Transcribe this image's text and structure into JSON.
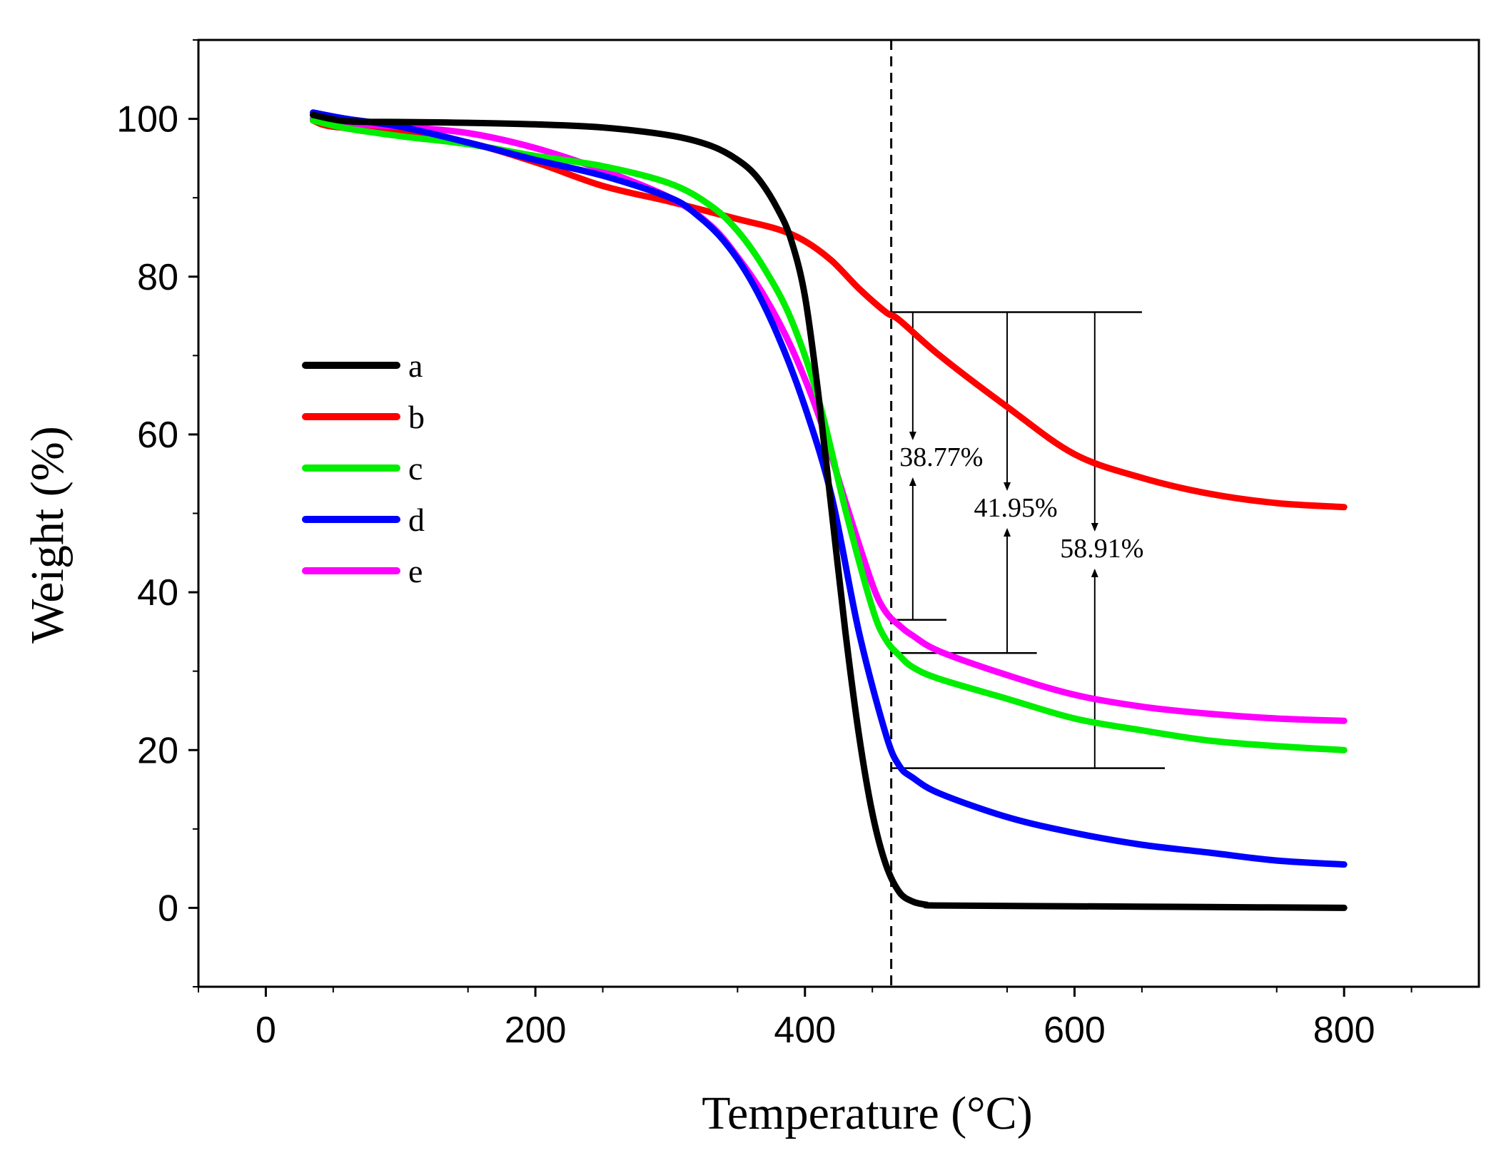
{
  "chart_data": {
    "type": "line",
    "xlabel": "Temperature (°C)",
    "ylabel": "Weight (%)",
    "xlim": [
      -50,
      900
    ],
    "ylim": [
      -10,
      110
    ],
    "xticks": [
      0,
      200,
      400,
      600,
      800
    ],
    "yticks": [
      0,
      20,
      40,
      60,
      80,
      100
    ],
    "grid": false,
    "legend_position": "middle-left",
    "colors": {
      "a": "#000000",
      "b": "#ff0000",
      "c": "#00ee00",
      "d": "#0000ff",
      "e": "#ff00ff"
    },
    "series": [
      {
        "name": "a",
        "x": [
          35,
          60,
          100,
          150,
          200,
          250,
          300,
          330,
          350,
          365,
          380,
          390,
          400,
          410,
          420,
          430,
          440,
          450,
          460,
          470,
          480,
          490,
          500,
          600,
          700,
          800
        ],
        "y": [
          100.5,
          99.7,
          99.6,
          99.5,
          99.3,
          98.9,
          97.9,
          96.6,
          94.8,
          92.5,
          88.5,
          84.5,
          77.5,
          65.0,
          50.0,
          35.0,
          22.0,
          12.0,
          5.5,
          2.0,
          0.8,
          0.4,
          0.3,
          0.2,
          0.1,
          0.0
        ]
      },
      {
        "name": "b",
        "x": [
          35,
          50,
          100,
          150,
          200,
          250,
          300,
          350,
          380,
          400,
          420,
          440,
          460,
          470,
          500,
          550,
          600,
          650,
          700,
          750,
          800
        ],
        "y": [
          99.8,
          99.0,
          98.3,
          97.0,
          94.5,
          91.5,
          89.5,
          87.3,
          86.0,
          84.5,
          82.0,
          78.5,
          75.5,
          74.5,
          70.0,
          63.5,
          57.5,
          54.5,
          52.5,
          51.3,
          50.8
        ]
      },
      {
        "name": "c",
        "x": [
          35,
          60,
          100,
          150,
          200,
          250,
          300,
          330,
          350,
          370,
          390,
          410,
          430,
          450,
          460,
          470,
          480,
          500,
          550,
          600,
          650,
          700,
          750,
          800
        ],
        "y": [
          99.8,
          98.8,
          97.8,
          96.8,
          95.3,
          94.0,
          91.8,
          89.0,
          85.8,
          81.0,
          74.5,
          64.5,
          50.5,
          38.0,
          34.0,
          32.0,
          30.5,
          29.0,
          26.5,
          24.0,
          22.5,
          21.2,
          20.5,
          20.0
        ]
      },
      {
        "name": "d",
        "x": [
          35,
          60,
          100,
          150,
          200,
          250,
          300,
          320,
          340,
          360,
          380,
          400,
          420,
          440,
          460,
          470,
          480,
          500,
          550,
          600,
          650,
          700,
          750,
          800
        ],
        "y": [
          100.8,
          100.0,
          99.0,
          97.0,
          94.8,
          92.8,
          90.0,
          87.8,
          84.5,
          79.5,
          72.5,
          63.5,
          52.0,
          35.0,
          22.0,
          18.0,
          16.5,
          14.5,
          11.5,
          9.5,
          8.0,
          7.0,
          6.0,
          5.5
        ]
      },
      {
        "name": "e",
        "x": [
          35,
          60,
          100,
          150,
          200,
          250,
          300,
          330,
          350,
          370,
          390,
          410,
          430,
          450,
          460,
          470,
          480,
          500,
          550,
          600,
          650,
          700,
          750,
          800
        ],
        "y": [
          100.0,
          99.4,
          99.0,
          98.2,
          96.3,
          93.5,
          90.0,
          86.5,
          82.5,
          77.5,
          71.0,
          62.5,
          51.5,
          41.0,
          37.5,
          35.8,
          34.5,
          32.5,
          29.5,
          27.0,
          25.5,
          24.6,
          24.0,
          23.7
        ]
      }
    ],
    "reference_line": {
      "x": 464,
      "style": "dashed"
    },
    "annotations": [
      {
        "label": "38.77%",
        "x": 480,
        "y_top": 75.5,
        "y_bottom": 36.5,
        "bar_x_range": [
          464,
          505
        ],
        "top_bar_x_range": [
          464,
          650
        ]
      },
      {
        "label": "41.95%",
        "x": 550,
        "y_top": 75.5,
        "y_bottom": 32.3,
        "bar_x_range": [
          464,
          572
        ]
      },
      {
        "label": "58.91%",
        "x": 615,
        "y_top": 75.5,
        "y_bottom": 17.7,
        "bar_x_range": [
          464,
          667
        ]
      }
    ]
  }
}
